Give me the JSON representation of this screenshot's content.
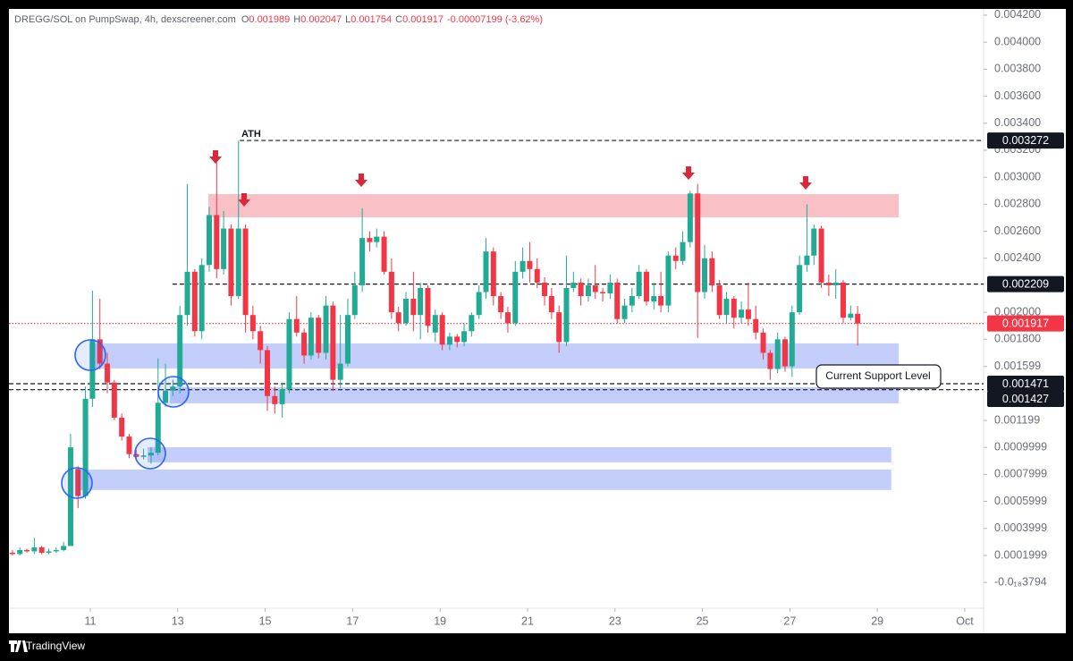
{
  "chart_data": {
    "type": "candlestick",
    "title": "DREGG/SOL on PumpSwap, 4h, dexscreener.com",
    "ohlc_header": [
      {
        "key": "O",
        "value": 0.001989
      },
      {
        "key": "H",
        "value": 0.002047
      },
      {
        "key": "L",
        "value": 0.001754
      },
      {
        "key": "C",
        "value": 0.001917
      }
    ],
    "change": "-0.00007199 (-3.62%)",
    "up_color": "#22ab94",
    "down_color": "#f23645",
    "x": [
      9.22,
      9.39,
      9.55,
      9.72,
      9.89,
      10.05,
      10.22,
      10.39,
      10.55,
      10.72,
      10.89,
      11.05,
      11.22,
      11.39,
      11.55,
      11.72,
      11.89,
      12.05,
      12.22,
      12.39,
      12.55,
      12.72,
      12.89,
      13.05,
      13.22,
      13.39,
      13.55,
      13.72,
      13.89,
      14.05,
      14.22,
      14.39,
      14.55,
      14.72,
      14.89,
      15.05,
      15.22,
      15.39,
      15.55,
      15.72,
      15.89,
      16.05,
      16.22,
      16.39,
      16.55,
      16.72,
      16.89,
      17.05,
      17.22,
      17.39,
      17.55,
      17.72,
      17.89,
      18.05,
      18.22,
      18.39,
      18.55,
      18.72,
      18.89,
      19.05,
      19.22,
      19.39,
      19.55,
      19.72,
      19.89,
      20.05,
      20.22,
      20.39,
      20.55,
      20.72,
      20.89,
      21.05,
      21.22,
      21.39,
      21.55,
      21.72,
      21.89,
      22.05,
      22.22,
      22.39,
      22.55,
      22.72,
      22.89,
      23.05,
      23.22,
      23.39,
      23.55,
      23.72,
      23.89,
      24.05,
      24.22,
      24.39,
      24.55,
      24.72,
      24.89,
      25.05,
      25.22,
      25.39,
      25.55,
      25.72,
      25.89,
      26.05,
      26.22,
      26.39,
      26.55,
      26.72,
      26.89,
      27.05,
      27.22,
      27.39,
      27.55,
      27.72,
      27.89,
      28.05,
      28.22,
      28.39,
      28.55
    ],
    "open": [
      0.00022,
      0.00021,
      0.00024,
      0.00023,
      0.00026,
      0.00022,
      0.00023,
      0.00024,
      0.00027,
      0.00084,
      0.00064,
      0.00136,
      0.0018,
      0.00162,
      0.00148,
      0.00122,
      0.00108,
      0.00095,
      0.00093,
      0.00094,
      0.00096,
      0.00133,
      0.00142,
      0.00145,
      0.00198,
      0.0023,
      0.00186,
      0.00235,
      0.00272,
      0.00232,
      0.00262,
      0.00212,
      0.00262,
      0.00198,
      0.00186,
      0.00172,
      0.00138,
      0.00132,
      0.00143,
      0.00195,
      0.00185,
      0.00168,
      0.00196,
      0.0017,
      0.00205,
      0.0015,
      0.00162,
      0.00198,
      0.0022,
      0.00255,
      0.00252,
      0.00256,
      0.0023,
      0.002,
      0.00192,
      0.0021,
      0.00198,
      0.00218,
      0.00185,
      0.00198,
      0.00176,
      0.00182,
      0.00178,
      0.00186,
      0.00198,
      0.00215,
      0.00245,
      0.00212,
      0.002,
      0.00192,
      0.0023,
      0.00238,
      0.00232,
      0.00222,
      0.00212,
      0.002,
      0.00178,
      0.00218,
      0.00222,
      0.00212,
      0.0022,
      0.00215,
      0.00214,
      0.00222,
      0.00195,
      0.00205,
      0.00212,
      0.0023,
      0.00208,
      0.00212,
      0.00205,
      0.00242,
      0.00238,
      0.00252,
      0.00288,
      0.00215,
      0.0024,
      0.0022,
      0.00198,
      0.0021,
      0.00196,
      0.00202,
      0.00195,
      0.00185,
      0.0017,
      0.00158,
      0.0018,
      0.0016,
      0.002,
      0.00235,
      0.00242,
      0.00262,
      0.00222,
      0.0022,
      0.00222,
      0.00196,
      0.001989
    ],
    "high": [
      0.00024,
      0.00026,
      0.00025,
      0.00033,
      0.00027,
      0.00025,
      0.00026,
      0.0003,
      0.0011,
      0.00086,
      0.00145,
      0.00216,
      0.0021,
      0.0017,
      0.0015,
      0.00125,
      0.0011,
      0.00098,
      0.00099,
      0.001,
      0.00166,
      0.00162,
      0.0015,
      0.00205,
      0.00295,
      0.00232,
      0.0024,
      0.00278,
      0.00315,
      0.00275,
      0.00265,
      0.003272,
      0.00265,
      0.00205,
      0.0019,
      0.00175,
      0.00145,
      0.00148,
      0.002,
      0.00212,
      0.00188,
      0.002,
      0.00198,
      0.00212,
      0.00208,
      0.00198,
      0.0021,
      0.0023,
      0.00277,
      0.0026,
      0.00262,
      0.0026,
      0.0024,
      0.00204,
      0.00215,
      0.0023,
      0.00222,
      0.0022,
      0.00202,
      0.002,
      0.00185,
      0.00184,
      0.00192,
      0.002,
      0.0022,
      0.00255,
      0.00248,
      0.00215,
      0.00204,
      0.00238,
      0.00248,
      0.00252,
      0.0024,
      0.00226,
      0.00218,
      0.00205,
      0.00242,
      0.0023,
      0.00225,
      0.00225,
      0.00235,
      0.00218,
      0.00228,
      0.00225,
      0.0021,
      0.00218,
      0.00235,
      0.00232,
      0.00222,
      0.0023,
      0.00245,
      0.00248,
      0.0026,
      0.0029,
      0.00295,
      0.0025,
      0.00245,
      0.00224,
      0.00215,
      0.00212,
      0.00208,
      0.00222,
      0.00205,
      0.00188,
      0.00172,
      0.00185,
      0.00182,
      0.00205,
      0.00242,
      0.0028,
      0.00265,
      0.00264,
      0.00228,
      0.00232,
      0.00224,
      0.00205,
      0.002047
    ],
    "low": [
      0.0002,
      0.0002,
      0.00022,
      0.00021,
      0.00021,
      0.00021,
      0.00022,
      0.00023,
      0.00027,
      0.00055,
      0.00062,
      0.0013,
      0.00158,
      0.0014,
      0.0012,
      0.00105,
      0.00092,
      0.0009,
      0.00091,
      0.00088,
      0.00094,
      0.0013,
      0.00138,
      0.0014,
      0.0019,
      0.00182,
      0.0018,
      0.0023,
      0.00225,
      0.00228,
      0.00205,
      0.0021,
      0.00185,
      0.0018,
      0.00162,
      0.00127,
      0.00125,
      0.00122,
      0.0014,
      0.00182,
      0.00162,
      0.00165,
      0.00166,
      0.00165,
      0.00142,
      0.00144,
      0.0016,
      0.00195,
      0.00215,
      0.00245,
      0.00248,
      0.00228,
      0.00195,
      0.00186,
      0.0019,
      0.00186,
      0.0018,
      0.00185,
      0.00178,
      0.00172,
      0.00172,
      0.00174,
      0.00175,
      0.00182,
      0.00195,
      0.0021,
      0.00205,
      0.00195,
      0.00185,
      0.0019,
      0.00225,
      0.00222,
      0.00218,
      0.00205,
      0.00195,
      0.0017,
      0.00175,
      0.00215,
      0.00205,
      0.00208,
      0.0021,
      0.00208,
      0.0021,
      0.00192,
      0.00192,
      0.002,
      0.0021,
      0.00205,
      0.00202,
      0.002,
      0.002,
      0.00232,
      0.00235,
      0.00248,
      0.00181,
      0.0021,
      0.00215,
      0.00195,
      0.00192,
      0.00188,
      0.00192,
      0.0019,
      0.0018,
      0.00165,
      0.0015,
      0.00155,
      0.00156,
      0.00152,
      0.00198,
      0.0023,
      0.00235,
      0.00218,
      0.00212,
      0.0021,
      0.00192,
      0.00194,
      0.001754
    ],
    "close": [
      0.00021,
      0.00024,
      0.00023,
      0.00026,
      0.00022,
      0.00023,
      0.00024,
      0.00027,
      0.001,
      0.00064,
      0.00136,
      0.0018,
      0.00162,
      0.00148,
      0.00122,
      0.00108,
      0.00095,
      0.00093,
      0.00094,
      0.00096,
      0.00133,
      0.00142,
      0.00145,
      0.00198,
      0.0023,
      0.00186,
      0.00235,
      0.00272,
      0.00232,
      0.00262,
      0.00212,
      0.00262,
      0.00198,
      0.00186,
      0.00172,
      0.00138,
      0.00132,
      0.00143,
      0.00195,
      0.00185,
      0.00168,
      0.00196,
      0.0017,
      0.00205,
      0.0015,
      0.00162,
      0.00198,
      0.0022,
      0.00255,
      0.00252,
      0.00256,
      0.0023,
      0.002,
      0.00192,
      0.0021,
      0.00198,
      0.00218,
      0.0019,
      0.00198,
      0.00176,
      0.00182,
      0.00178,
      0.00186,
      0.00198,
      0.00215,
      0.00245,
      0.00212,
      0.002,
      0.00192,
      0.0023,
      0.00238,
      0.00232,
      0.00222,
      0.00212,
      0.002,
      0.00178,
      0.00218,
      0.00222,
      0.00212,
      0.0022,
      0.00215,
      0.00214,
      0.00222,
      0.00195,
      0.00205,
      0.00212,
      0.0023,
      0.00208,
      0.00212,
      0.00205,
      0.00242,
      0.00238,
      0.00252,
      0.00288,
      0.00215,
      0.0024,
      0.0022,
      0.00198,
      0.0021,
      0.00196,
      0.00202,
      0.00195,
      0.00185,
      0.0017,
      0.00158,
      0.0018,
      0.0016,
      0.002,
      0.00235,
      0.00242,
      0.00262,
      0.00222,
      0.0022,
      0.00222,
      0.00196,
      0.00199,
      0.001917
    ],
    "xlim": [
      9.14,
      31.43
    ],
    "xticks": [
      11,
      13,
      15,
      17,
      19,
      21,
      23,
      25,
      27,
      29,
      {
        "value": 31,
        "label": "Oct"
      }
    ],
    "ylim": [
      -0.000191,
      0.004246
    ],
    "yticks": [
      {
        "value": 0.0042,
        "label": "0.004200"
      },
      {
        "value": 0.004,
        "label": "0.004000"
      },
      {
        "value": 0.0038,
        "label": "0.003800"
      },
      {
        "value": 0.0036,
        "label": "0.003600"
      },
      {
        "value": 0.0034,
        "label": "0.003400"
      },
      {
        "value": 0.0032,
        "label": "0.003200"
      },
      {
        "value": 0.003,
        "label": "0.003000"
      },
      {
        "value": 0.0028,
        "label": "0.002800"
      },
      {
        "value": 0.0026,
        "label": "0.002600"
      },
      {
        "value": 0.0024,
        "label": "0.002400"
      },
      {
        "value": 0.002,
        "label": "0.002000"
      },
      {
        "value": 0.0018,
        "label": "0.001800"
      },
      0.001599,
      0.001199,
      0.0009999,
      0.0007999,
      0.0005999,
      0.0003999,
      0.0001999,
      {
        "value": -3.794e-20,
        "label": "-0.0₁₈3794"
      }
    ],
    "zones": [
      {
        "from": 13.7,
        "to": 29.49,
        "top": 0.002875,
        "bottom": 0.002703,
        "color": "#f9c0c6"
      },
      {
        "from": 10.98,
        "to": 29.49,
        "top": 0.00177,
        "bottom": 0.001584,
        "color": "#c3cffa"
      },
      {
        "from": 12.82,
        "to": 29.49,
        "top": 0.001445,
        "bottom": 0.001326,
        "color": "#c3cffa"
      },
      {
        "from": 12.31,
        "to": 29.32,
        "top": 0.0010013,
        "bottom": 0.000889,
        "color": "#c3cffa"
      },
      {
        "from": 10.67,
        "to": 29.32,
        "top": 0.000836,
        "bottom": 0.000684,
        "color": "#c3cffa"
      }
    ],
    "levels": [
      {
        "value": 0.003272,
        "from": 14.42,
        "color": "#131722",
        "style": "dashed"
      },
      {
        "value": 0.002209,
        "from": 12.88,
        "color": "#131722",
        "style": "dashed"
      },
      {
        "value": 0.001917,
        "from": 9.14,
        "color": "#f23645",
        "style": "dotted"
      },
      {
        "value": 0.001471,
        "from": 9.14,
        "color": "#131722",
        "style": "dashed"
      },
      {
        "value": 0.001427,
        "from": 9.14,
        "color": "#131722",
        "style": "dashed"
      }
    ],
    "annotations": {
      "ath": "ATH",
      "support": "Current Support Level"
    }
  },
  "footer": {
    "brand": "TradingView"
  }
}
